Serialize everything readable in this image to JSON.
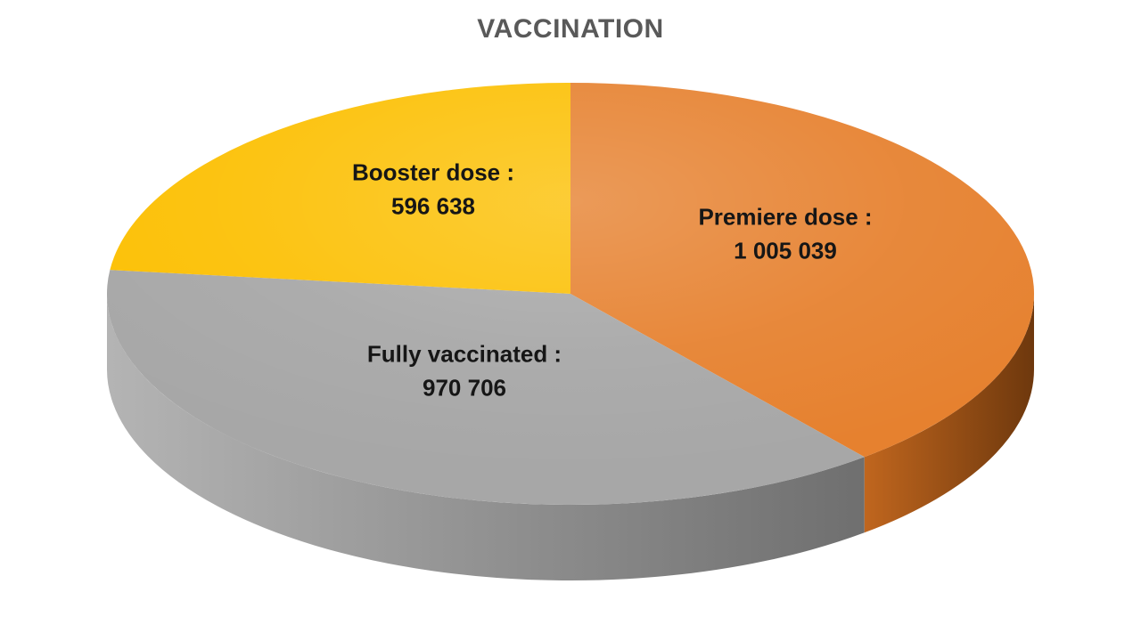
{
  "chart_data": {
    "type": "pie",
    "style": "3d",
    "title": "VACCINATION",
    "title_color": "#595959",
    "label_color": "#161616",
    "background": "#FFFFFF",
    "legend": "none",
    "grid": "off",
    "labels_inside": true,
    "start_angle_deg": 0,
    "direction": "clockwise",
    "total": 2572383,
    "slices": [
      {
        "name": "Premiere dose",
        "label_line1": "Premiere dose :",
        "label_line2": "1 005 039",
        "value": 1005039,
        "color": "#E6812F",
        "side_light": "#C0661E",
        "side_dark": "#6E380D"
      },
      {
        "name": "Fully vaccinated",
        "label_line1": "Fully vaccinated :",
        "label_line2": "970 706",
        "value": 970706,
        "color": "#A7A7A7",
        "side_light": "#B4B4B4",
        "side_dark": "#6F6F6F"
      },
      {
        "name": "Booster dose",
        "label_line1": "Booster dose :",
        "label_line2": "596 638",
        "value": 596638,
        "color": "#FCC004",
        "side_light": "#C79702",
        "side_dark": "#8A6800"
      }
    ]
  }
}
